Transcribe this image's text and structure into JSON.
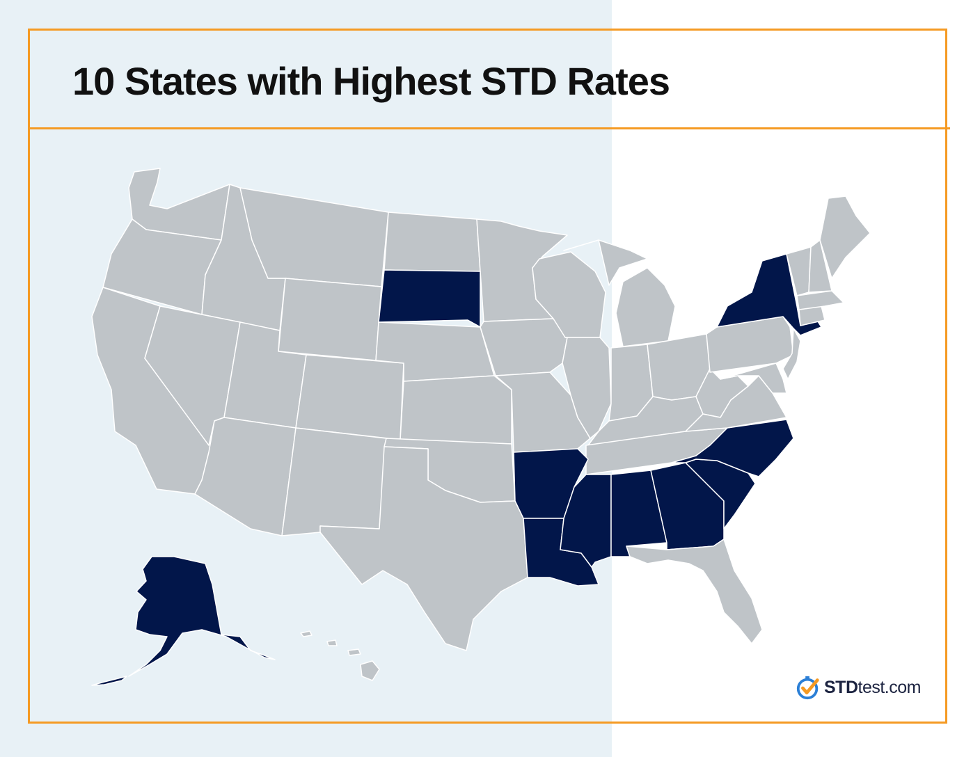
{
  "title": "10 States with Highest STD Rates",
  "colors": {
    "frame": "#f59a23",
    "highlighted_state": "#02164a",
    "other_state": "#bfc4c8",
    "left_background": "#e8f1f6",
    "logo_check": "#f59a23",
    "logo_ring": "#2b7fd6"
  },
  "map": {
    "highlighted_states": [
      "Alaska",
      "South Dakota",
      "New York",
      "Arkansas",
      "Louisiana",
      "Mississippi",
      "Alabama",
      "Georgia",
      "South Carolina",
      "North Carolina"
    ]
  },
  "logo": {
    "brand": "STD",
    "domain": "test.com",
    "icon": "checkmark-clock-icon"
  }
}
